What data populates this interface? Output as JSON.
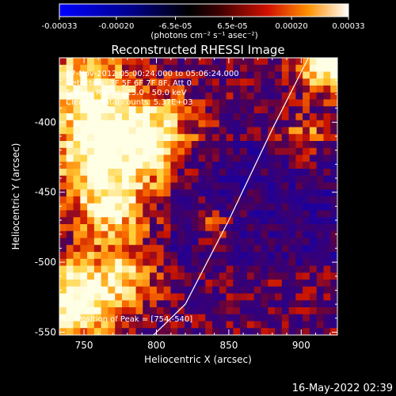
{
  "chart_data": {
    "type": "heatmap",
    "title": "Reconstructed RHESSI Image",
    "xlabel": "Heliocentric X (arcsec)",
    "ylabel": "Heliocentric Y (arcsec)",
    "xlim": [
      733,
      925
    ],
    "ylim": [
      -552,
      -354
    ],
    "x_ticks": [
      750,
      800,
      850,
      900
    ],
    "y_ticks": [
      -400,
      -450,
      -500,
      -550
    ],
    "colorbar": {
      "range": [
        -0.00033,
        0.00033
      ],
      "ticks": [
        {
          "value": -0.00033,
          "label": "-0.00033"
        },
        {
          "value": -0.0002,
          "label": "-0.00020"
        },
        {
          "value": -6.5e-05,
          "label": "-6.5e-05"
        },
        {
          "value": 6.5e-05,
          "label": "6.5e-05"
        },
        {
          "value": 0.0002,
          "label": "0.00020"
        },
        {
          "value": 0.00033,
          "label": "0.00033"
        }
      ],
      "unit_label": "(photons cm⁻² s⁻¹ asec⁻²)"
    },
    "annotations": [
      "17-Nov-2012 05:00:24.000 to 05:06:24.000",
      "Detectors: 3F 5F 6F 7F 8F, Att 0",
      "Energy Range: 25.0 - 50.0 keV",
      "Clean     Total counts: 5.37E+03"
    ],
    "peak_label": "Position of Peak = [754,-540]",
    "limb_curve": [
      [
        798,
        -552
      ],
      [
        820,
        -530
      ],
      [
        850,
        -470
      ],
      [
        880,
        -405
      ],
      [
        905,
        -354
      ]
    ]
  },
  "footer_date": "16-May-2022 02:39"
}
